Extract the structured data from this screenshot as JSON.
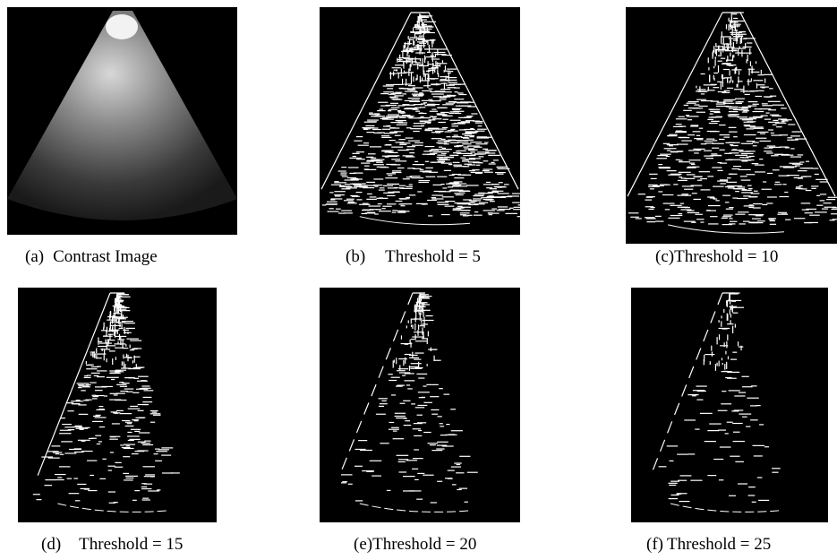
{
  "panels": [
    {
      "label": "(a)",
      "text": "Contrast Image"
    },
    {
      "label": "(b)",
      "text": "Threshold = 5"
    },
    {
      "label": "(c)",
      "text": "Threshold = 10"
    },
    {
      "label": "(d)",
      "text": "Threshold = 15"
    },
    {
      "label": "(e)",
      "text": "Threshold = 20"
    },
    {
      "label": "(f)",
      "text": "Threshold = 25"
    }
  ]
}
